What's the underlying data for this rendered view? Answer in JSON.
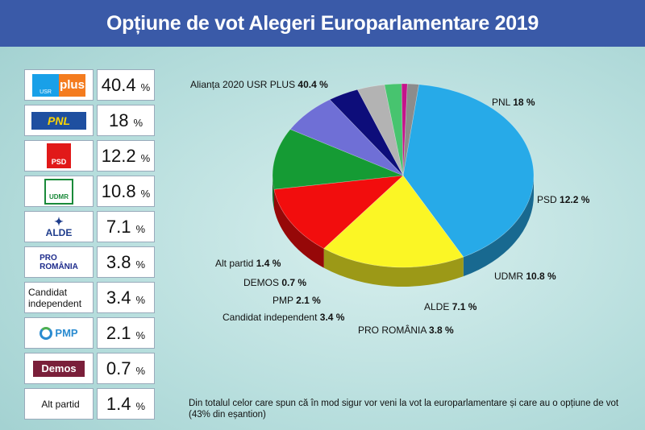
{
  "header": {
    "title": "Opțiune de vot Alegeri Europarlamentare 2019"
  },
  "legend": [
    {
      "logo": "usr-plus-logo",
      "logo_text_a": "USR",
      "logo_text_b": "plus",
      "value": "40.4",
      "pct": "%"
    },
    {
      "logo": "pnl-logo",
      "logo_text": "PNL",
      "value": "18",
      "pct": "%"
    },
    {
      "logo": "psd-logo",
      "logo_text": "PSD",
      "value": "12.2",
      "pct": "%"
    },
    {
      "logo": "udmr-logo",
      "logo_text": "UDMR",
      "value": "10.8",
      "pct": "%"
    },
    {
      "logo": "alde-logo",
      "logo_text": "ALDE",
      "value": "7.1",
      "pct": "%"
    },
    {
      "logo": "pro-romania-logo",
      "logo_text_a": "PRO",
      "logo_text_b": "ROMÂNIA",
      "value": "3.8",
      "pct": "%"
    },
    {
      "logo": "text",
      "logo_text": "Candidat independent",
      "value": "3.4",
      "pct": "%"
    },
    {
      "logo": "pmp-logo",
      "logo_text": "PMP",
      "value": "2.1",
      "pct": "%"
    },
    {
      "logo": "demos-logo",
      "logo_text": "Demos",
      "value": "0.7",
      "pct": "%"
    },
    {
      "logo": "text",
      "logo_text": "Alt partid",
      "value": "1.4",
      "pct": "%"
    }
  ],
  "chart_data": {
    "type": "pie",
    "title": "Opțiune de vot Alegeri Europarlamentare 2019",
    "slices": [
      {
        "name": "Alianța 2020 USR PLUS",
        "value": 40.4,
        "color": "#27aae8",
        "label": "40.4 %"
      },
      {
        "name": "PNL",
        "value": 18,
        "color": "#fbf625",
        "label": "18 %"
      },
      {
        "name": "PSD",
        "value": 12.2,
        "color": "#f20d0d",
        "label": "12.2 %"
      },
      {
        "name": "UDMR",
        "value": 10.8,
        "color": "#159b34",
        "label": "10.8 %"
      },
      {
        "name": "ALDE",
        "value": 7.1,
        "color": "#6f6fd6",
        "label": "7.1 %"
      },
      {
        "name": "PRO ROMÂNIA",
        "value": 3.8,
        "color": "#0d0d7a",
        "label": "3.8 %"
      },
      {
        "name": "Candidat independent",
        "value": 3.4,
        "color": "#b3b3b3",
        "label": "3.4 %"
      },
      {
        "name": "PMP",
        "value": 2.1,
        "color": "#47c46f",
        "label": "2.1 %"
      },
      {
        "name": "DEMOS",
        "value": 0.7,
        "color": "#c4148a",
        "label": "0.7 %"
      },
      {
        "name": "Alt partid",
        "value": 1.4,
        "color": "#8c8c8c",
        "label": "1.4 %"
      }
    ]
  },
  "footnote": "Din totalul celor care spun că în mod sigur vor veni la vot la europarlamentare și care au o opțiune de vot (43% din eșantion)"
}
